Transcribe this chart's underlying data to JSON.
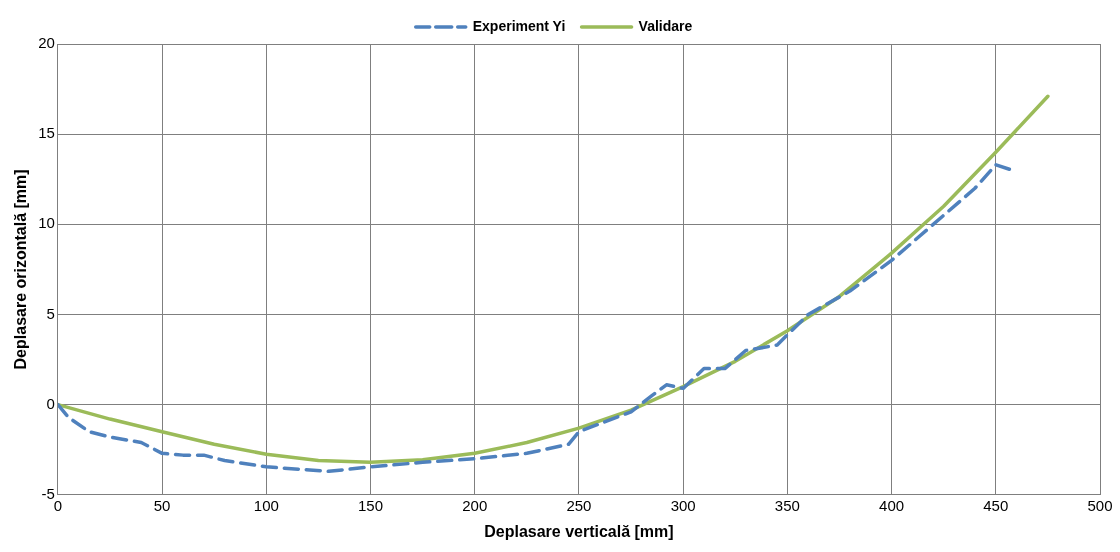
{
  "chart_data": {
    "type": "line",
    "xlabel": "Deplasare verticală [mm]",
    "ylabel": "Deplasare orizontală [mm]",
    "xlim": [
      0,
      500
    ],
    "xticks": [
      0,
      50,
      100,
      150,
      200,
      250,
      300,
      350,
      400,
      450,
      500
    ],
    "ylim": [
      -5,
      20
    ],
    "yticks": [
      -5,
      0,
      5,
      10,
      15,
      20
    ],
    "grid": true,
    "legend": "top",
    "marker": "none",
    "series": [
      {
        "name": "Experiment Yi",
        "color": "#4f81bd",
        "line_style": "dashed",
        "x": [
          0,
          5,
          15,
          25,
          40,
          50,
          60,
          70,
          80,
          100,
          130,
          150,
          175,
          200,
          225,
          245,
          250,
          275,
          285,
          292,
          300,
          310,
          320,
          330,
          345,
          360,
          380,
          400,
          425,
          440,
          450,
          458
        ],
        "values": [
          0,
          -0.7,
          -1.5,
          -1.8,
          -2.1,
          -2.7,
          -2.8,
          -2.8,
          -3.1,
          -3.45,
          -3.7,
          -3.45,
          -3.2,
          -3,
          -2.7,
          -2.2,
          -1.5,
          -0.4,
          0.5,
          1.1,
          0.9,
          2,
          2,
          3,
          3.3,
          5,
          6.3,
          8,
          10.5,
          12,
          13.3,
          13
        ]
      },
      {
        "name": "Validare",
        "color": "#9bbb59",
        "line_style": "solid",
        "x": [
          0,
          25,
          50,
          75,
          100,
          125,
          150,
          175,
          200,
          225,
          250,
          275,
          300,
          325,
          350,
          375,
          400,
          425,
          450,
          475
        ],
        "values": [
          0,
          -0.8,
          -1.5,
          -2.2,
          -2.75,
          -3.1,
          -3.2,
          -3.05,
          -2.7,
          -2.1,
          -1.3,
          -0.3,
          1,
          2.4,
          4.1,
          6,
          8.4,
          11,
          14,
          17.1
        ]
      }
    ]
  }
}
